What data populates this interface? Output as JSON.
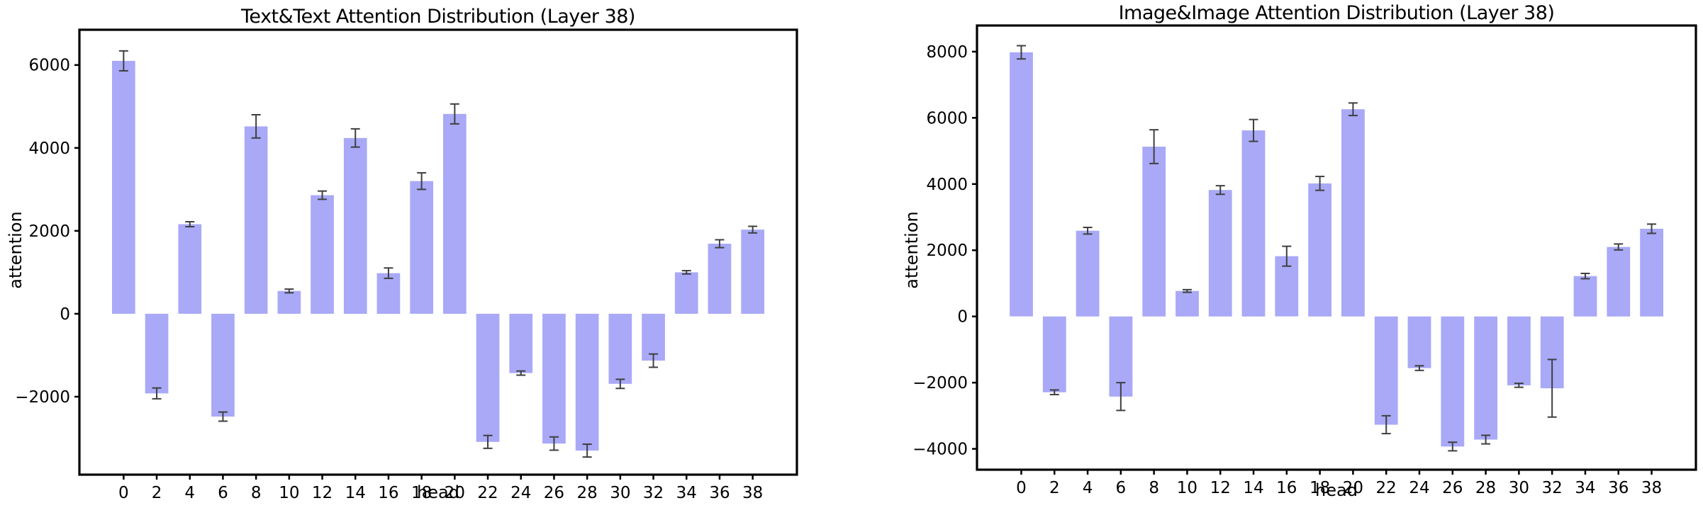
{
  "figure": {
    "background": "#ffffff",
    "bar_color": "#a9a9f8",
    "error_color": "#3f3f3f",
    "axis_color": "#000000"
  },
  "chart_data": [
    {
      "type": "bar",
      "title": "Text&Text Attention Distribution (Layer 38)",
      "xlabel": "head",
      "ylabel": "attention",
      "categories": [
        0,
        2,
        4,
        6,
        8,
        10,
        12,
        14,
        16,
        18,
        20,
        22,
        24,
        26,
        28,
        30,
        32,
        34,
        36,
        38
      ],
      "values": [
        6100,
        -1920,
        2160,
        -2480,
        4520,
        550,
        2860,
        4240,
        980,
        3200,
        4820,
        -3090,
        -1430,
        -3130,
        -3300,
        -1690,
        -1130,
        1000,
        1690,
        2030
      ],
      "errors": [
        240,
        130,
        60,
        110,
        280,
        45,
        100,
        220,
        125,
        200,
        240,
        155,
        50,
        160,
        155,
        110,
        160,
        40,
        95,
        80
      ],
      "yticks": [
        6000,
        4000,
        2000,
        0,
        -2000
      ],
      "ylim": [
        -3880,
        6850
      ],
      "xlim": [
        -2.67,
        40.67
      ],
      "bar_width": 1.4,
      "grid": false,
      "legend": "none"
    },
    {
      "type": "bar",
      "title": "Image&Image Attention Distribution (Layer 38)",
      "xlabel": "head",
      "ylabel": "attention",
      "categories": [
        0,
        2,
        4,
        6,
        8,
        10,
        12,
        14,
        16,
        18,
        20,
        22,
        24,
        26,
        28,
        30,
        32,
        34,
        36,
        38
      ],
      "values": [
        7980,
        -2290,
        2590,
        -2420,
        5130,
        770,
        3820,
        5620,
        1820,
        4020,
        6260,
        -3270,
        -1560,
        -3930,
        -3720,
        -2080,
        -2170,
        1220,
        2100,
        2650
      ],
      "errors": [
        200,
        70,
        100,
        420,
        510,
        40,
        130,
        330,
        300,
        210,
        190,
        270,
        70,
        130,
        130,
        60,
        870,
        80,
        90,
        140
      ],
      "yticks": [
        8000,
        6000,
        4000,
        2000,
        0,
        -2000,
        -4000
      ],
      "ylim": [
        -4630,
        8790
      ],
      "xlim": [
        -2.67,
        40.67
      ],
      "bar_width": 1.4,
      "grid": false,
      "legend": "none"
    }
  ]
}
